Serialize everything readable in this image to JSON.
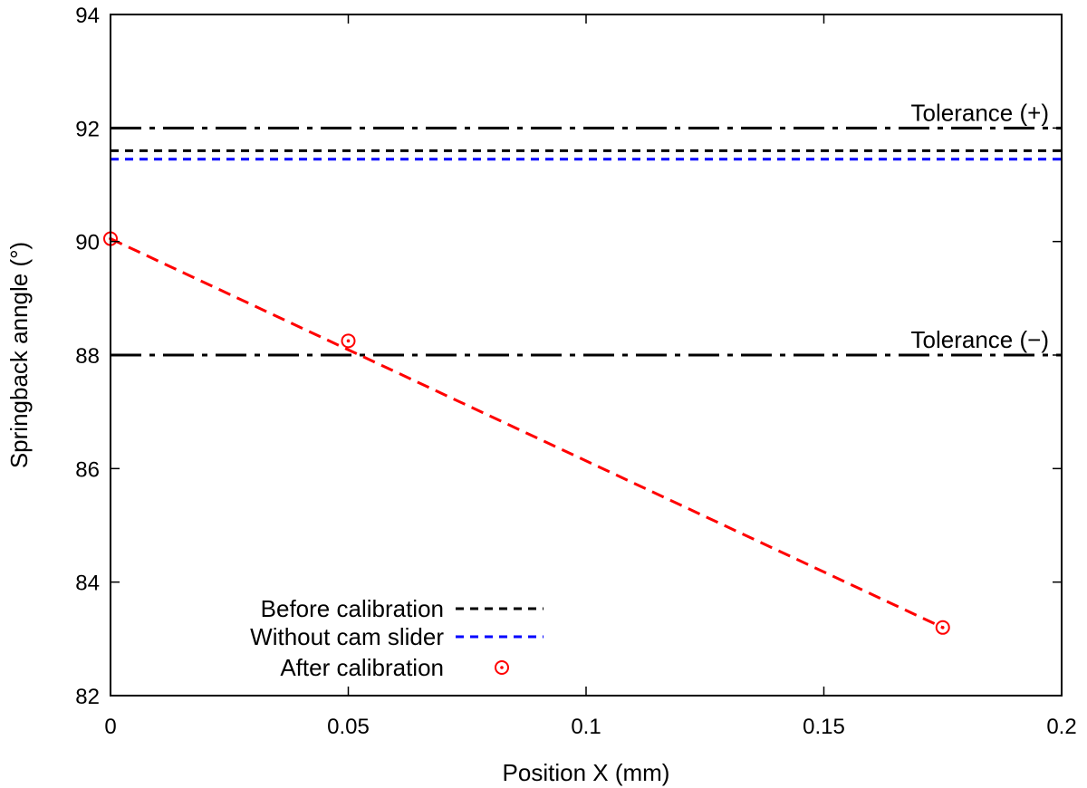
{
  "chart_data": {
    "type": "line",
    "title": "",
    "xlabel": "Position X (mm)",
    "ylabel": "Springback anngle (°)",
    "xlim": [
      0,
      0.2
    ],
    "ylim": [
      82,
      94
    ],
    "grid": false,
    "legend_position": "bottom-left",
    "xticks": [
      0,
      0.05,
      0.1,
      0.15,
      0.2
    ],
    "xtick_labels": [
      "0",
      "0.05",
      "0.1",
      "0.15",
      "0.2"
    ],
    "yticks": [
      82,
      84,
      86,
      88,
      90,
      92,
      94
    ],
    "ytick_labels": [
      "82",
      "84",
      "86",
      "88",
      "90",
      "92",
      "94"
    ],
    "series": [
      {
        "name": "Before calibration",
        "kind": "hline",
        "y": 91.6,
        "color": "#000000",
        "dash": "short"
      },
      {
        "name": "Without cam slider",
        "kind": "hline",
        "y": 91.45,
        "color": "#0000ff",
        "dash": "short"
      },
      {
        "name": "After calibration",
        "kind": "points",
        "color": "#ff0000",
        "x": [
          0,
          0.05,
          0.175
        ],
        "y": [
          90.05,
          88.25,
          83.2
        ]
      }
    ],
    "legend": [
      "Before calibration",
      "Without cam slider",
      "After calibration"
    ],
    "annotations": [
      {
        "text": "Tolerance (+)",
        "y": 92
      },
      {
        "text": "Tolerance (−)",
        "y": 88
      }
    ],
    "reference_lines": [
      {
        "y": 92,
        "color": "#000000",
        "dash": "dash-dot"
      },
      {
        "y": 88,
        "color": "#000000",
        "dash": "dash-dot"
      }
    ],
    "trend_line": {
      "x": [
        0,
        0.175
      ],
      "y": [
        90.05,
        83.2
      ],
      "color": "#ff0000"
    }
  }
}
